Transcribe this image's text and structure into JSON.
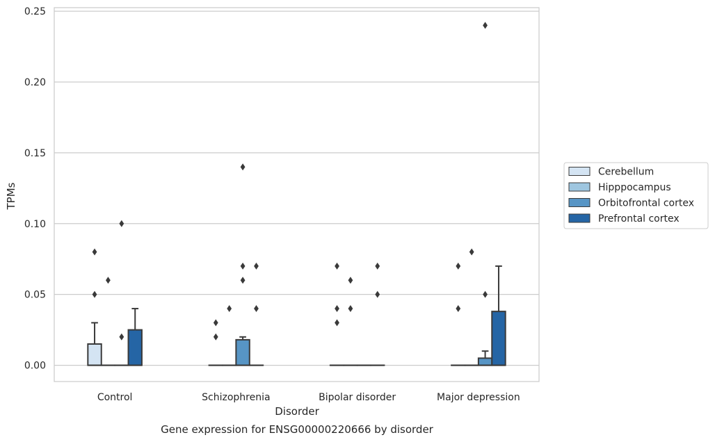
{
  "chart_data": {
    "type": "box",
    "title": "",
    "caption": "Gene expression for ENSG00000220666 by disorder",
    "xlabel": "Disorder",
    "ylabel": "TPMs",
    "ylim": [
      -0.0115,
      0.2525
    ],
    "yticks": [
      0.0,
      0.05,
      0.1,
      0.15,
      0.2,
      0.25
    ],
    "ytick_labels": [
      "0.00",
      "0.05",
      "0.10",
      "0.15",
      "0.20",
      "0.25"
    ],
    "grid": "horizontal",
    "legend_position": "right",
    "categories": [
      "Control",
      "Schizophrenia",
      "Bipolar disorder",
      "Major depression"
    ],
    "series": [
      {
        "name": "Cerebellum",
        "color": "#d4e4f3",
        "boxes": [
          {
            "q1": 0,
            "median": 0,
            "q3": 0.015,
            "whisker_high": 0.03,
            "outliers": [
              0.05,
              0.08
            ]
          },
          {
            "q1": 0,
            "median": 0,
            "q3": 0,
            "whisker_high": 0,
            "outliers": [
              0.02,
              0.03
            ]
          },
          {
            "q1": 0,
            "median": 0,
            "q3": 0,
            "whisker_high": 0,
            "outliers": [
              0.03,
              0.04,
              0.07
            ]
          },
          {
            "q1": 0,
            "median": 0,
            "q3": 0,
            "whisker_high": 0,
            "outliers": [
              0.04,
              0.07
            ]
          }
        ]
      },
      {
        "name": "Hipppocampus",
        "color": "#9ec6e0",
        "boxes": [
          {
            "q1": 0,
            "median": 0,
            "q3": 0,
            "whisker_high": 0,
            "outliers": [
              0.06
            ]
          },
          {
            "q1": 0,
            "median": 0,
            "q3": 0,
            "whisker_high": 0,
            "outliers": [
              0.04
            ]
          },
          {
            "q1": 0,
            "median": 0,
            "q3": 0,
            "whisker_high": 0,
            "outliers": [
              0.04,
              0.06
            ]
          },
          {
            "q1": 0,
            "median": 0,
            "q3": 0,
            "whisker_high": 0,
            "outliers": [
              0.08
            ]
          }
        ]
      },
      {
        "name": "Orbitofrontal cortex",
        "color": "#5795c5",
        "boxes": [
          {
            "q1": 0,
            "median": 0,
            "q3": 0,
            "whisker_high": 0,
            "outliers": [
              0.02,
              0.1
            ]
          },
          {
            "q1": 0,
            "median": 0,
            "q3": 0.018,
            "whisker_high": 0.02,
            "outliers": [
              0.06,
              0.07,
              0.14
            ]
          },
          {
            "q1": 0,
            "median": 0,
            "q3": 0,
            "whisker_high": 0,
            "outliers": []
          },
          {
            "q1": 0,
            "median": 0,
            "q3": 0.005,
            "whisker_high": 0.01,
            "outliers": [
              0.05,
              0.24
            ]
          }
        ]
      },
      {
        "name": "Prefrontal cortex",
        "color": "#2565a5",
        "boxes": [
          {
            "q1": 0,
            "median": 0,
            "q3": 0.025,
            "whisker_high": 0.04,
            "outliers": []
          },
          {
            "q1": 0,
            "median": 0,
            "q3": 0,
            "whisker_high": 0,
            "outliers": [
              0.04,
              0.07
            ]
          },
          {
            "q1": 0,
            "median": 0,
            "q3": 0,
            "whisker_high": 0,
            "outliers": [
              0.05,
              0.07
            ]
          },
          {
            "q1": 0,
            "median": 0,
            "q3": 0.038,
            "whisker_high": 0.07,
            "outliers": []
          }
        ]
      }
    ]
  }
}
